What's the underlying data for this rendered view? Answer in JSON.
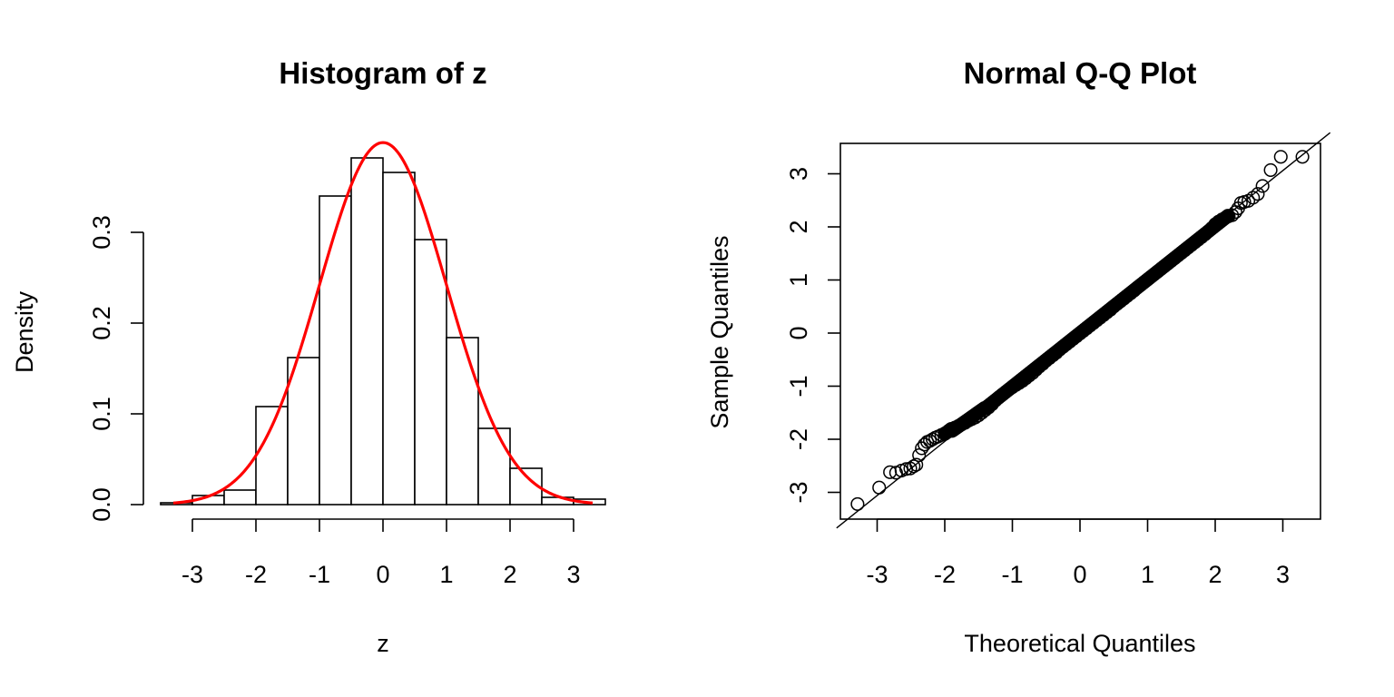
{
  "chart_data": [
    {
      "type": "bar",
      "title": "Histogram of z",
      "xlabel": "z",
      "ylabel": "Density",
      "xlim": [
        -3.5,
        3.5
      ],
      "ylim": [
        0,
        0.4
      ],
      "x_ticks": [
        -3,
        -2,
        -1,
        0,
        1,
        2,
        3
      ],
      "x_tick_labels": [
        "-3",
        "-2",
        "-1",
        "0",
        "1",
        "2",
        "3"
      ],
      "y_ticks": [
        0.0,
        0.1,
        0.2,
        0.3
      ],
      "y_tick_labels": [
        "0.0",
        "0.1",
        "0.2",
        "0.3"
      ],
      "bin_edges": [
        -3.5,
        -3.0,
        -2.5,
        -2.0,
        -1.5,
        -1.0,
        -0.5,
        0.0,
        0.5,
        1.0,
        1.5,
        2.0,
        2.5,
        3.0,
        3.5
      ],
      "values": [
        0.002,
        0.01,
        0.016,
        0.108,
        0.162,
        0.34,
        0.382,
        0.366,
        0.292,
        0.184,
        0.084,
        0.04,
        0.008,
        0.006
      ],
      "overlay": {
        "type": "line",
        "curve": "normal-density",
        "mean": 0,
        "sd": 1,
        "from": -3.3,
        "to": 3.3,
        "color": "#ff0000"
      },
      "bar_fill": "#ffffff",
      "bar_stroke": "#000000",
      "grid": false
    },
    {
      "type": "scatter",
      "title": "Normal Q-Q Plot",
      "xlabel": "Theoretical Quantiles",
      "ylabel": "Sample Quantiles",
      "xlim": [
        -3.5,
        3.5
      ],
      "ylim": [
        -3.5,
        3.6
      ],
      "x_ticks": [
        -3,
        -2,
        -1,
        0,
        1,
        2,
        3
      ],
      "x_tick_labels": [
        "-3",
        "-2",
        "-1",
        "0",
        "1",
        "2",
        "3"
      ],
      "y_ticks": [
        -3,
        -2,
        -1,
        0,
        1,
        2,
        3
      ],
      "y_tick_labels": [
        "-3",
        "-2",
        "-1",
        "0",
        "1",
        "2",
        "3"
      ],
      "reference_line": {
        "intercept": 0,
        "slope": 1.02,
        "color": "#000000"
      },
      "marker": "open-circle",
      "points": [
        [
          -3.29,
          -3.22
        ],
        [
          -2.97,
          -2.91
        ],
        [
          -2.81,
          -2.62
        ],
        [
          -2.72,
          -2.63
        ],
        [
          -2.64,
          -2.59
        ],
        [
          -2.57,
          -2.56
        ],
        [
          -2.51,
          -2.55
        ],
        [
          -2.46,
          -2.51
        ],
        [
          -2.42,
          -2.48
        ],
        [
          -2.38,
          -2.3
        ],
        [
          -2.34,
          -2.17
        ],
        [
          -2.3,
          -2.1
        ],
        [
          -2.26,
          -2.05
        ],
        [
          -2.22,
          -2.03
        ],
        [
          -2.18,
          -2.0
        ],
        [
          -2.14,
          -1.97
        ],
        [
          -2.1,
          -1.95
        ],
        [
          -2.05,
          -1.92
        ],
        [
          -2.0,
          -1.89
        ],
        [
          -1.95,
          -1.85
        ],
        [
          -1.9,
          -1.82
        ],
        [
          -1.85,
          -1.78
        ],
        [
          -1.8,
          -1.75
        ],
        [
          -1.75,
          -1.72
        ],
        [
          -1.7,
          -1.69
        ],
        [
          -1.65,
          -1.65
        ],
        [
          -1.6,
          -1.62
        ],
        [
          -1.55,
          -1.59
        ],
        [
          -1.5,
          -1.55
        ],
        [
          -1.45,
          -1.5
        ],
        [
          -1.4,
          -1.45
        ],
        [
          -1.35,
          -1.4
        ],
        [
          -1.3,
          -1.34
        ],
        [
          -1.25,
          -1.27
        ],
        [
          -1.2,
          -1.21
        ],
        [
          -1.15,
          -1.16
        ],
        [
          -1.1,
          -1.11
        ],
        [
          -1.05,
          -1.06
        ],
        [
          -1.0,
          -1.02
        ],
        [
          -0.95,
          -0.98
        ],
        [
          -0.9,
          -0.94
        ],
        [
          -0.85,
          -0.9
        ],
        [
          -0.8,
          -0.85
        ],
        [
          -0.75,
          -0.8
        ],
        [
          -0.7,
          -0.75
        ],
        [
          -0.65,
          -0.69
        ],
        [
          -0.6,
          -0.63
        ],
        [
          -0.55,
          -0.58
        ],
        [
          -0.5,
          -0.52
        ],
        [
          -0.45,
          -0.47
        ],
        [
          -0.4,
          -0.42
        ],
        [
          -0.35,
          -0.37
        ],
        [
          -0.3,
          -0.31
        ],
        [
          -0.25,
          -0.26
        ],
        [
          -0.2,
          -0.21
        ],
        [
          -0.15,
          -0.16
        ],
        [
          -0.1,
          -0.11
        ],
        [
          -0.05,
          -0.06
        ],
        [
          0.0,
          -0.01
        ],
        [
          0.05,
          0.04
        ],
        [
          0.1,
          0.09
        ],
        [
          0.15,
          0.14
        ],
        [
          0.2,
          0.19
        ],
        [
          0.25,
          0.24
        ],
        [
          0.3,
          0.29
        ],
        [
          0.35,
          0.34
        ],
        [
          0.4,
          0.39
        ],
        [
          0.45,
          0.44
        ],
        [
          0.5,
          0.5
        ],
        [
          0.55,
          0.55
        ],
        [
          0.6,
          0.6
        ],
        [
          0.65,
          0.65
        ],
        [
          0.7,
          0.7
        ],
        [
          0.75,
          0.75
        ],
        [
          0.8,
          0.8
        ],
        [
          0.85,
          0.86
        ],
        [
          0.9,
          0.91
        ],
        [
          0.95,
          0.96
        ],
        [
          1.0,
          1.01
        ],
        [
          1.05,
          1.06
        ],
        [
          1.1,
          1.11
        ],
        [
          1.15,
          1.16
        ],
        [
          1.2,
          1.21
        ],
        [
          1.25,
          1.26
        ],
        [
          1.3,
          1.31
        ],
        [
          1.35,
          1.36
        ],
        [
          1.4,
          1.41
        ],
        [
          1.45,
          1.46
        ],
        [
          1.5,
          1.51
        ],
        [
          1.55,
          1.56
        ],
        [
          1.6,
          1.61
        ],
        [
          1.65,
          1.66
        ],
        [
          1.7,
          1.71
        ],
        [
          1.75,
          1.76
        ],
        [
          1.8,
          1.81
        ],
        [
          1.85,
          1.86
        ],
        [
          1.9,
          1.92
        ],
        [
          1.95,
          1.98
        ],
        [
          2.0,
          2.05
        ],
        [
          2.05,
          2.1
        ],
        [
          2.1,
          2.14
        ],
        [
          2.15,
          2.17
        ],
        [
          2.2,
          2.2
        ],
        [
          2.25,
          2.22
        ],
        [
          2.3,
          2.28
        ],
        [
          2.34,
          2.35
        ],
        [
          2.38,
          2.45
        ],
        [
          2.43,
          2.47
        ],
        [
          2.49,
          2.49
        ],
        [
          2.56,
          2.55
        ],
        [
          2.63,
          2.62
        ],
        [
          2.7,
          2.77
        ],
        [
          2.82,
          3.07
        ],
        [
          2.97,
          3.32
        ],
        [
          3.29,
          3.32
        ]
      ],
      "grid": false
    }
  ]
}
